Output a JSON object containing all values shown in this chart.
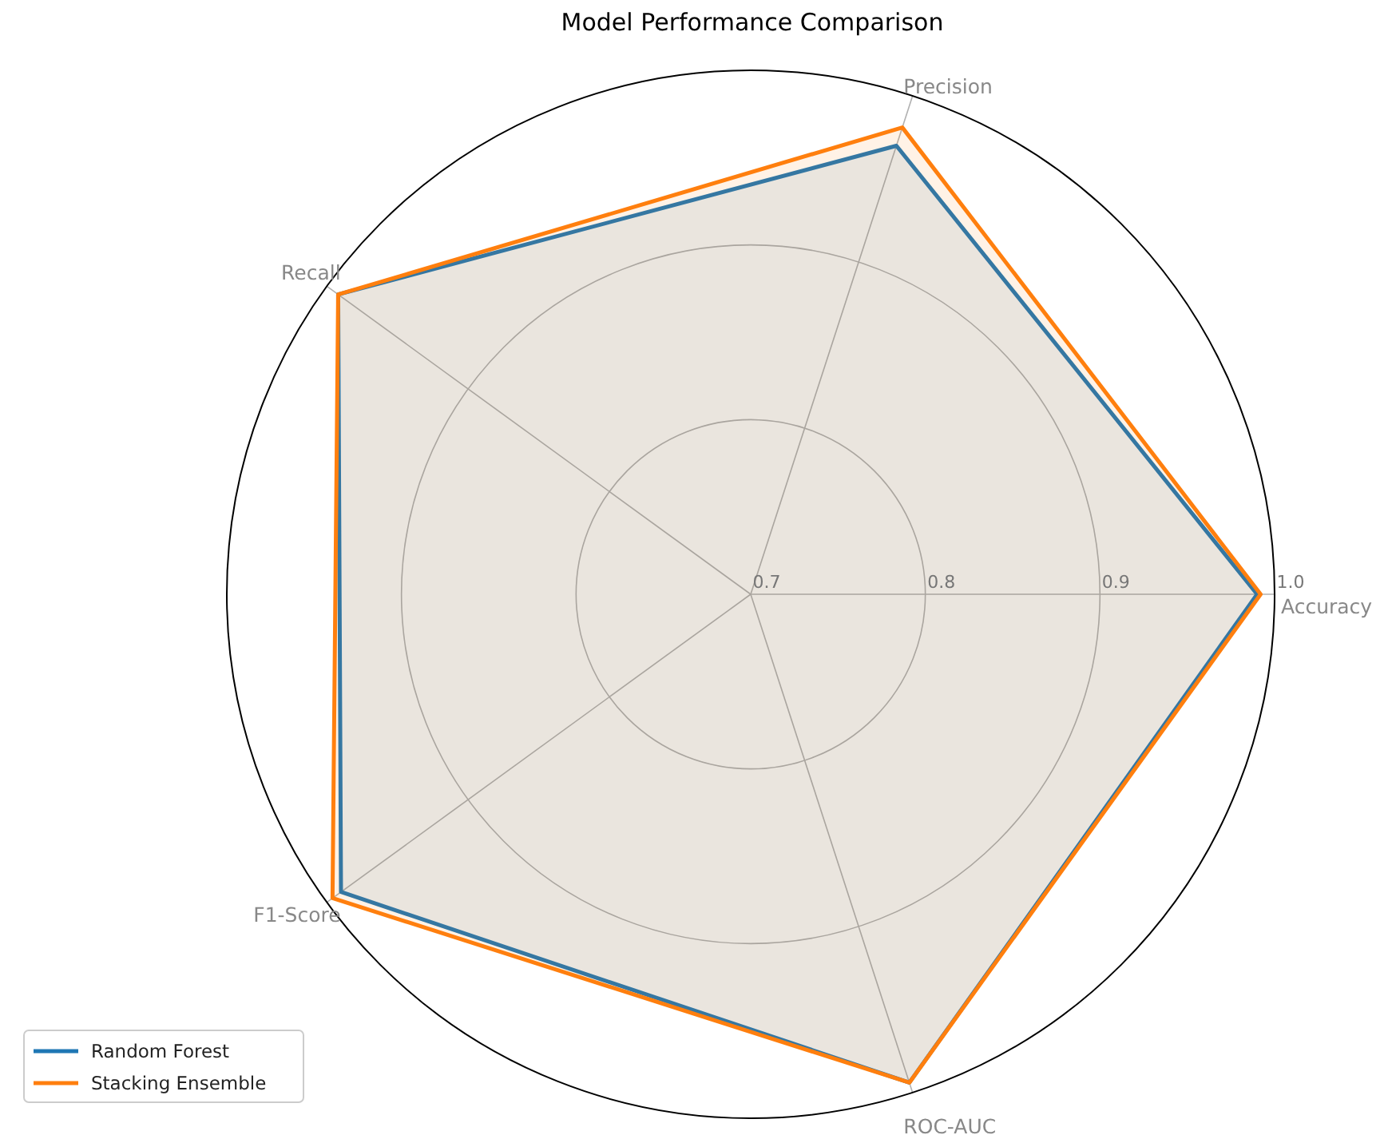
{
  "chart_data": {
    "type": "radar",
    "title": "Model Performance Comparison",
    "categories": [
      "Precision",
      "Accuracy",
      "ROC-AUC",
      "F1-Score",
      "Recall"
    ],
    "ylim": [
      0.7,
      1.0
    ],
    "yticks": [
      0.7,
      0.8,
      0.9,
      {
        "value": 1.0,
        "label": "1.0"
      }
    ],
    "grid": true,
    "legend": "bottom left",
    "series": [
      {
        "name": "Random Forest",
        "color": "#1f77b4",
        "values": [
          0.97,
          0.99,
          0.994,
          0.99,
          0.992
        ]
      },
      {
        "name": "Stacking Ensemble",
        "color": "#ff7f0e",
        "values": [
          0.981,
          0.992,
          0.994,
          0.996,
          0.992
        ]
      }
    ]
  }
}
